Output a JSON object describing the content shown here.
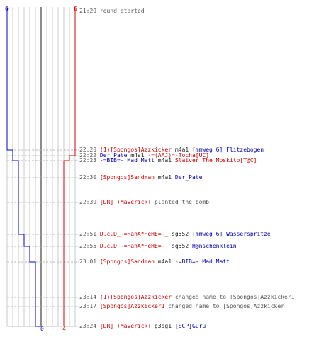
{
  "scoreboard": {
    "blue_start": "6",
    "red_start": "6",
    "blue_end": "0",
    "red_end": "4",
    "colors": {
      "blue": "#0000cc",
      "red": "#dd0000",
      "grid": "#c8c8c8",
      "divider": "#666666"
    }
  },
  "chart_data": {
    "type": "line",
    "xlabel": "",
    "ylabel": "",
    "series": [
      {
        "name": "",
        "color": "#0000cc",
        "x": [
          "21:29",
          "22:20",
          "22:23",
          "22:51",
          "22:55",
          "23:01",
          "23:24"
        ],
        "values": [
          6,
          5,
          4,
          3,
          2,
          1,
          0
        ]
      },
      {
        "name": "",
        "color": "#dd0000",
        "x": [
          "21:29",
          "22:22",
          "22:23",
          "23:24"
        ],
        "values": [
          6,
          5,
          4,
          4
        ]
      }
    ]
  },
  "events": [
    {
      "time": "21:29",
      "parts": [
        {
          "t": "round started",
          "c": "grey"
        }
      ]
    },
    {
      "time": "22:20",
      "parts": [
        {
          "t": "(1)[Spongos]Azzkicker",
          "c": "red"
        },
        {
          "t": " m4a1 ",
          "c": "blk"
        },
        {
          "t": "[mmweg 6] Flitzebogen",
          "c": "blue"
        }
      ]
    },
    {
      "time": "22:22",
      "parts": [
        {
          "t": "Der_Pate",
          "c": "blue"
        },
        {
          "t": " m4a1 ",
          "c": "blk"
        },
        {
          "t": "-=(AAJ)=-Tocha[UC]",
          "c": "red"
        }
      ]
    },
    {
      "time": "22:23",
      "parts": [
        {
          "t": "-=BIB=- Mad Matt",
          "c": "blue"
        },
        {
          "t": " m4a1 ",
          "c": "blk"
        },
        {
          "t": "Slaiver The Moskito[T@C]",
          "c": "red"
        }
      ]
    },
    {
      "time": "22:30",
      "parts": [
        {
          "t": "[Spongos]Sandman",
          "c": "red"
        },
        {
          "t": " m4a1 ",
          "c": "blk"
        },
        {
          "t": "Der_Pate",
          "c": "blue"
        }
      ]
    },
    {
      "time": "22:39",
      "parts": [
        {
          "t": "[DR] +Maverick+",
          "c": "red"
        },
        {
          "t": " planted the bomb",
          "c": "grey"
        }
      ]
    },
    {
      "time": "22:51",
      "parts": [
        {
          "t": "D.c.D_-=HahA*HeHE=-_",
          "c": "red"
        },
        {
          "t": " sg552 ",
          "c": "blk"
        },
        {
          "t": "[mmweg 6] Wasserspritze",
          "c": "blue"
        }
      ]
    },
    {
      "time": "22:55",
      "parts": [
        {
          "t": "D.c.D_-=HahA*HeHE=-_",
          "c": "red"
        },
        {
          "t": " sg552 ",
          "c": "blk"
        },
        {
          "t": "H@nschenklein",
          "c": "blue"
        }
      ]
    },
    {
      "time": "23:01",
      "parts": [
        {
          "t": "[Spongos]Sandman",
          "c": "red"
        },
        {
          "t": " m4a1 ",
          "c": "blk"
        },
        {
          "t": "-=BIB=- Mad Matt",
          "c": "blue"
        }
      ]
    },
    {
      "time": "23:14",
      "parts": [
        {
          "t": "(1)[Spongos]Azzkicker",
          "c": "red"
        },
        {
          "t": " changed name to [Spongos]Azzkicker1",
          "c": "grey"
        }
      ]
    },
    {
      "time": "23:17",
      "parts": [
        {
          "t": "[Spongos]Azzkicker1",
          "c": "red"
        },
        {
          "t": " changed name to [Spongos]Azzkicker",
          "c": "grey"
        }
      ]
    },
    {
      "time": "23:24",
      "parts": [
        {
          "t": "[DR] +Maverick+",
          "c": "red"
        },
        {
          "t": " g3sg1 ",
          "c": "blk"
        },
        {
          "t": "[SCP]Guru",
          "c": "blue"
        }
      ]
    }
  ]
}
